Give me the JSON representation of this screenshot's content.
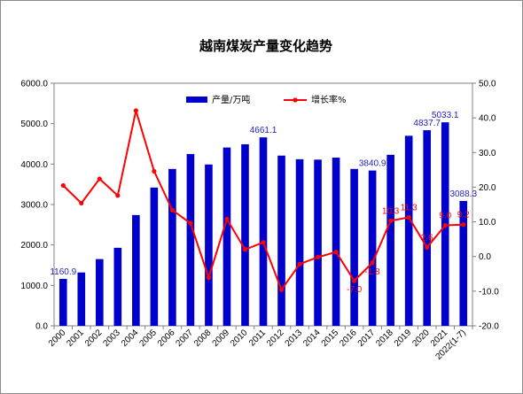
{
  "chart_data": {
    "type": "bar",
    "title": "越南煤炭产量变化趋势",
    "categories": [
      "2000",
      "2001",
      "2002",
      "2003",
      "2004",
      "2005",
      "2006",
      "2007",
      "2008",
      "2009",
      "2010",
      "2011",
      "2012",
      "2013",
      "2014",
      "2015",
      "2016",
      "2017",
      "2018",
      "2019",
      "2020",
      "2021",
      "2022(1-7)"
    ],
    "series": [
      {
        "name": "产量/万吨",
        "kind": "bar",
        "axis": "left",
        "color": "#0000cc",
        "values": [
          1160.9,
          1320,
          1650,
          1930,
          2740,
          3420,
          3880,
          4250,
          3990,
          4410,
          4490,
          4661.1,
          4210,
          4120,
          4110,
          4160,
          3880,
          3840.9,
          4230,
          4700,
          4837.7,
          5033.1,
          3088.3
        ]
      },
      {
        "name": "增长率%",
        "kind": "line",
        "axis": "right",
        "color": "#ff0000",
        "values": [
          20.5,
          15.4,
          22.4,
          17.6,
          42.1,
          24.6,
          13.4,
          9.6,
          -6.1,
          10.8,
          2.0,
          4.1,
          -9.6,
          -2.2,
          -0.2,
          1.3,
          -7.0,
          -1.8,
          10.3,
          11.3,
          2.6,
          9.0,
          9.2
        ]
      }
    ],
    "bar_labels": [
      {
        "index": 0,
        "text": "1160.9"
      },
      {
        "index": 11,
        "text": "4661.1"
      },
      {
        "index": 17,
        "text": "3840.9"
      },
      {
        "index": 20,
        "text": "4837.7"
      },
      {
        "index": 21,
        "text": "5033.1"
      },
      {
        "index": 22,
        "text": "3088.3"
      }
    ],
    "line_labels": [
      {
        "index": 16,
        "text": "-7.0"
      },
      {
        "index": 17,
        "text": "-1.8"
      },
      {
        "index": 18,
        "text": "10.3"
      },
      {
        "index": 19,
        "text": "11.3"
      },
      {
        "index": 20,
        "text": "2.6"
      },
      {
        "index": 21,
        "text": "9.0"
      },
      {
        "index": 22,
        "text": "9.2"
      }
    ],
    "y_left": {
      "min": 0,
      "max": 6000,
      "step": 1000,
      "tick_labels": [
        "0.0",
        "1000.0",
        "2000.0",
        "3000.0",
        "4000.0",
        "5000.0",
        "6000.0"
      ]
    },
    "y_right": {
      "min": -20,
      "max": 50,
      "step": 10,
      "tick_labels": [
        "-20.0",
        "-10.0",
        "0.0",
        "10.0",
        "20.0",
        "30.0",
        "40.0",
        "50.0"
      ]
    },
    "grid": false,
    "legend": {
      "position": "top-center",
      "entries": [
        "产量/万吨",
        "增长率%"
      ]
    }
  }
}
